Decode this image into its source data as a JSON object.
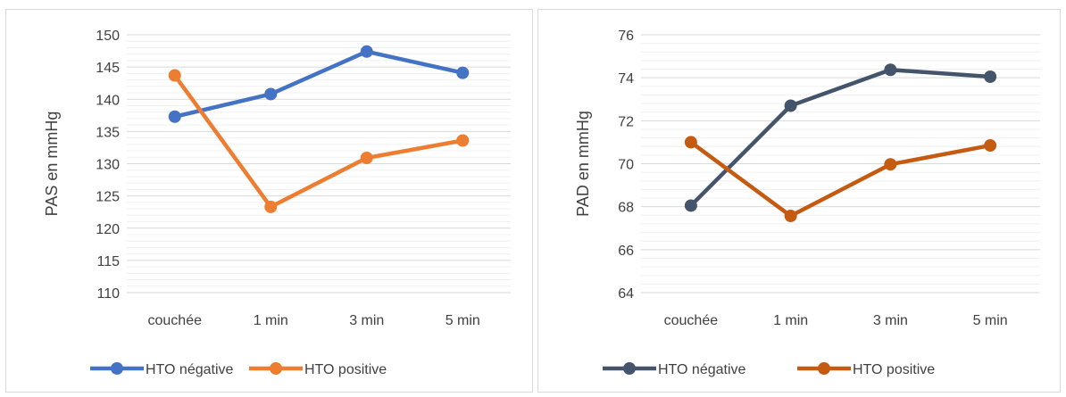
{
  "chart_data": [
    {
      "type": "line",
      "title": "",
      "xlabel": "",
      "ylabel": "PAS en mmHg",
      "categories": [
        "couchée",
        "1 min",
        "3 min",
        "5 min"
      ],
      "ylim": [
        110,
        150
      ],
      "yticks": [
        110,
        115,
        120,
        125,
        130,
        135,
        140,
        145,
        150
      ],
      "grid": true,
      "legend": "bottom",
      "series": [
        {
          "name": "HTO négative",
          "values": [
            137.3,
            140.8,
            147.4,
            144.1
          ],
          "color": "#4472C4"
        },
        {
          "name": "HTO positive",
          "values": [
            143.7,
            123.3,
            130.9,
            133.6
          ],
          "color": "#ED7D31"
        }
      ]
    },
    {
      "type": "line",
      "title": "",
      "xlabel": "",
      "ylabel": "PAD en mmHg",
      "categories": [
        "couchée",
        "1 min",
        "3 min",
        "5 min"
      ],
      "ylim": [
        64,
        76
      ],
      "yticks": [
        64,
        66,
        68,
        70,
        72,
        74,
        76
      ],
      "grid": true,
      "legend": "bottom",
      "series": [
        {
          "name": "HTO négative",
          "values": [
            68.05,
            72.7,
            74.37,
            74.05
          ],
          "color": "#44546A"
        },
        {
          "name": "HTO positive",
          "values": [
            71.0,
            67.57,
            69.97,
            70.85
          ],
          "color": "#C55A11"
        }
      ]
    }
  ]
}
